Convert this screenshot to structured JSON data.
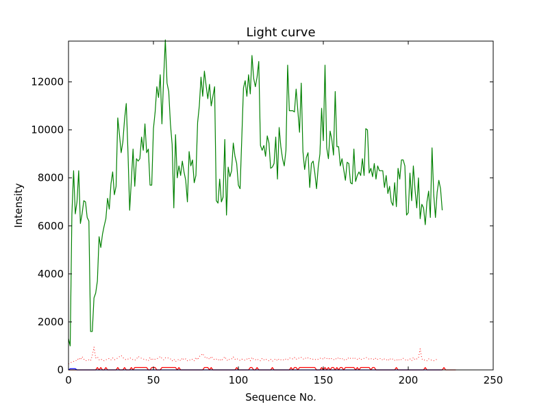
{
  "chart_data": {
    "type": "line",
    "title": "Light curve",
    "xlabel": "Sequence No.",
    "ylabel": "Intensity",
    "xlim": [
      0,
      250
    ],
    "ylim": [
      0,
      13700
    ],
    "xticks": [
      0,
      50,
      100,
      150,
      200,
      250
    ],
    "yticks": [
      0,
      2000,
      4000,
      6000,
      8000,
      10000,
      12000
    ],
    "xtick_labels": [
      "0",
      "50",
      "100",
      "150",
      "200",
      "250"
    ],
    "ytick_labels": [
      "0",
      "2000",
      "4000",
      "6000",
      "8000",
      "10000",
      "12000"
    ],
    "grid": false,
    "series": [
      {
        "color": "#008000",
        "style": "solid",
        "y": [
          1300,
          1000,
          6500,
          8300,
          6500,
          7000,
          8300,
          6100,
          6500,
          7050,
          7000,
          6350,
          6200,
          1600,
          1600,
          3000,
          3200,
          3700,
          5550,
          5100,
          5650,
          6000,
          6300,
          7150,
          6700,
          7750,
          8250,
          7300,
          7650,
          10500,
          9800,
          9050,
          9500,
          10450,
          11100,
          9100,
          6650,
          7900,
          9200,
          7650,
          8800,
          8700,
          8800,
          9700,
          9150,
          10250,
          9050,
          9200,
          7700,
          7700,
          10050,
          10750,
          11800,
          11350,
          12300,
          10250,
          12150,
          13750,
          11950,
          11600,
          10250,
          9400,
          6750,
          9800,
          8000,
          8500,
          8100,
          8700,
          8250,
          7900,
          7000,
          9100,
          8500,
          8750,
          7800,
          8100,
          10300,
          11000,
          12200,
          11400,
          12450,
          11850,
          11300,
          11900,
          11000,
          11400,
          11800,
          7050,
          6950,
          7950,
          7000,
          7200,
          9600,
          6450,
          8450,
          8050,
          8300,
          9450,
          8900,
          8600,
          7700,
          7550,
          9650,
          11750,
          12050,
          11400,
          12300,
          11500,
          13100,
          12150,
          11800,
          12200,
          12850,
          9350,
          9150,
          9350,
          8900,
          9750,
          9450,
          8400,
          8450,
          8600,
          9700,
          7950,
          10100,
          9300,
          8800,
          8500,
          9150,
          12700,
          10800,
          10800,
          10800,
          10750,
          11700,
          10800,
          9900,
          11950,
          9100,
          8350,
          8850,
          9050,
          7600,
          8600,
          8700,
          8200,
          7550,
          8450,
          9000,
          10900,
          9550,
          12700,
          9250,
          8800,
          9950,
          9600,
          8950,
          11600,
          9300,
          9300,
          8500,
          8800,
          8350,
          7900,
          8650,
          8600,
          7800,
          7750,
          9200,
          7850,
          8100,
          8250,
          8100,
          8800,
          8100,
          10050,
          10000,
          8200,
          8400,
          8050,
          8600,
          7950,
          8500,
          8300,
          8300,
          8300,
          7600,
          8100,
          7350,
          7650,
          7000,
          6850,
          7800,
          6800,
          8400,
          7950,
          8750,
          8750,
          8500,
          6450,
          6550,
          8200,
          7050,
          8500,
          7500,
          6750,
          8000,
          6300,
          6900,
          6750,
          6050,
          7000,
          7450,
          6350,
          9250,
          7300,
          6350,
          7400,
          7900,
          7550,
          6650
        ]
      },
      {
        "color": "#ff0000",
        "style": "dotted",
        "y": [
          250,
          300,
          320,
          350,
          400,
          380,
          500,
          420,
          550,
          450,
          380,
          400,
          420,
          380,
          600,
          950,
          500,
          550,
          420,
          460,
          400,
          380,
          420,
          450,
          480,
          420,
          500,
          420,
          450,
          500,
          550,
          600,
          520,
          450,
          420,
          450,
          500,
          480,
          420,
          400,
          450,
          560,
          520,
          480,
          460,
          420,
          420,
          380,
          520,
          400,
          480,
          440,
          460,
          500,
          560,
          480,
          420,
          500,
          520,
          480,
          460,
          380,
          450,
          350,
          400,
          450,
          380,
          500,
          420,
          460,
          380,
          420,
          400,
          450,
          380,
          520,
          420,
          560,
          600,
          680,
          560,
          480,
          520,
          440,
          560,
          480,
          420,
          450,
          400,
          460,
          380,
          460,
          550,
          420,
          380,
          460,
          460,
          540,
          440,
          480,
          420,
          400,
          450,
          420,
          400,
          450,
          500,
          380,
          520,
          440,
          420,
          460,
          400,
          380,
          480,
          420,
          460,
          400,
          380,
          440,
          360,
          420,
          460,
          380,
          460,
          420,
          440,
          400,
          460,
          420,
          500,
          480,
          460,
          520,
          440,
          500,
          480,
          520,
          460,
          440,
          520,
          500,
          460,
          480,
          440,
          420,
          460,
          440,
          480,
          500,
          440,
          520,
          480,
          440,
          500,
          460,
          420,
          480,
          440,
          520,
          460,
          480,
          400,
          460,
          420,
          520,
          480,
          460,
          520,
          460,
          440,
          500,
          420,
          460,
          480,
          520,
          500,
          440,
          460,
          480,
          420,
          500,
          440,
          460,
          480,
          400,
          460,
          440,
          380,
          480,
          420,
          460,
          400,
          440,
          380,
          460,
          420,
          480,
          440,
          380,
          420,
          460,
          380,
          520,
          420,
          460,
          500,
          880,
          460,
          400,
          420,
          380,
          460,
          420,
          400,
          380,
          420,
          440
        ]
      },
      {
        "color": "#ff0000",
        "style": "solid",
        "y": [
          0,
          0,
          0,
          0,
          0,
          0,
          0,
          0,
          0,
          0,
          0,
          0,
          0,
          0,
          0,
          0,
          0,
          100,
          0,
          100,
          0,
          0,
          100,
          0,
          0,
          0,
          0,
          0,
          0,
          100,
          0,
          0,
          0,
          100,
          0,
          0,
          0,
          100,
          0,
          100,
          100,
          100,
          100,
          100,
          100,
          100,
          100,
          0,
          0,
          100,
          100,
          100,
          0,
          0,
          0,
          100,
          100,
          100,
          100,
          100,
          100,
          100,
          100,
          100,
          0,
          100,
          0,
          0,
          0,
          0,
          0,
          0,
          0,
          0,
          0,
          0,
          0,
          0,
          0,
          0,
          100,
          100,
          100,
          0,
          100,
          0,
          0,
          0,
          0,
          0,
          0,
          0,
          0,
          0,
          0,
          0,
          0,
          0,
          0,
          100,
          0,
          0,
          0,
          0,
          0,
          0,
          0,
          100,
          100,
          0,
          0,
          100,
          0,
          0,
          0,
          0,
          0,
          0,
          0,
          0,
          100,
          0,
          0,
          0,
          0,
          0,
          0,
          0,
          0,
          0,
          0,
          100,
          0,
          100,
          100,
          0,
          100,
          100,
          100,
          100,
          100,
          100,
          100,
          100,
          100,
          100,
          0,
          0,
          0,
          100,
          0,
          100,
          0,
          100,
          0,
          100,
          100,
          0,
          100,
          0,
          100,
          100,
          0,
          100,
          100,
          100,
          100,
          100,
          100,
          0,
          100,
          0,
          100,
          100,
          100,
          100,
          100,
          100,
          0,
          100,
          100,
          0,
          0,
          0,
          0,
          0,
          0,
          0,
          0,
          0,
          0,
          0,
          0,
          100,
          0,
          0,
          0,
          0,
          0,
          0,
          0,
          0,
          0,
          0,
          0,
          0,
          0,
          0,
          0,
          0,
          100,
          0,
          0,
          0,
          0,
          0,
          0,
          0,
          0,
          0,
          0,
          100,
          0,
          0,
          0,
          0,
          0,
          0,
          0
        ]
      },
      {
        "color": "#0000ff",
        "style": "solid",
        "y": [
          0,
          50,
          50,
          50,
          50,
          0,
          0,
          0,
          0,
          0,
          0,
          0,
          0,
          0,
          0,
          0,
          0,
          0,
          0,
          0,
          0,
          0,
          0,
          0,
          0,
          0,
          0,
          0,
          0,
          0,
          0,
          0,
          0,
          0,
          0,
          0,
          0,
          0,
          0,
          0,
          0,
          0,
          0,
          0,
          0,
          0,
          0,
          0,
          0,
          0,
          0,
          0,
          0,
          0,
          0,
          0,
          0,
          0,
          0,
          0,
          0,
          0,
          0,
          0,
          0,
          0,
          0,
          0,
          0,
          0,
          0,
          0,
          0,
          0,
          0,
          0,
          0,
          0,
          0,
          0,
          0,
          0,
          0,
          0,
          0,
          0,
          0,
          0,
          0,
          0,
          0,
          0,
          0,
          0,
          0,
          0,
          0,
          0,
          0,
          0,
          0,
          0,
          0,
          0,
          0,
          0,
          0,
          0,
          0,
          0,
          0,
          0,
          0,
          0,
          0,
          0,
          0,
          0,
          0,
          0,
          0,
          0,
          0,
          0,
          0,
          0,
          0,
          0,
          0,
          0,
          0,
          0,
          0,
          0,
          0,
          0,
          0,
          0,
          0,
          0,
          0,
          0,
          0,
          0,
          0,
          0,
          0,
          0,
          0,
          0,
          0,
          0,
          0,
          0,
          0,
          0,
          0,
          0,
          0,
          0,
          0,
          0,
          0,
          0,
          0,
          0,
          0,
          0,
          0,
          0,
          0,
          0,
          0,
          0,
          0,
          0,
          0,
          0,
          0,
          0,
          0,
          0,
          0,
          0,
          0,
          0,
          0,
          0,
          0,
          0,
          0,
          0,
          0,
          0,
          0,
          0,
          0,
          0,
          0,
          0,
          0,
          0,
          0,
          0,
          0,
          0,
          0,
          0,
          0,
          0,
          0,
          0,
          0,
          0,
          0,
          0,
          0,
          0,
          0,
          0,
          0
        ]
      }
    ]
  }
}
